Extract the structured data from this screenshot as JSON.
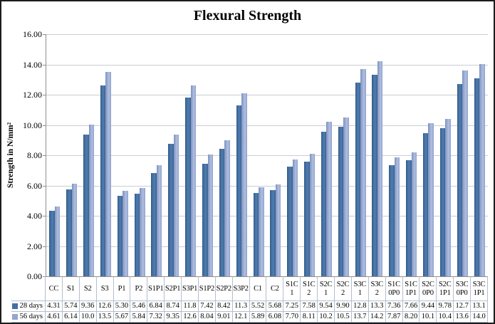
{
  "chart_data": {
    "type": "bar",
    "title": "Flexural Strength",
    "xlabel": "",
    "ylabel": "Strength in N/mm²",
    "ylim": [
      0,
      16
    ],
    "ytick_step": 2,
    "ytick_labels": [
      "0.00",
      "2.00",
      "4.00",
      "6.00",
      "8.00",
      "10.00",
      "12.00",
      "14.00",
      "16.00"
    ],
    "grid": true,
    "legend_position": "data-table-left",
    "categories": [
      "CC",
      "S1",
      "S2",
      "S3",
      "P1",
      "P2",
      "S1P1",
      "S2P1",
      "S3P1",
      "S1P2",
      "S2P2",
      "S3P2",
      "C1",
      "C2",
      "S1C1",
      "S1C2",
      "S2C1",
      "S2C2",
      "S3C1",
      "S3C2",
      "S1C0P0",
      "S1C1P1",
      "S2C0P0",
      "S2C1P1",
      "S3C0P0",
      "S3C1P1"
    ],
    "category_label_lines": [
      [
        "CC"
      ],
      [
        "S1"
      ],
      [
        "S2"
      ],
      [
        "S3"
      ],
      [
        "P1"
      ],
      [
        "P2"
      ],
      [
        "S1P1"
      ],
      [
        "S2P1"
      ],
      [
        "S3P1"
      ],
      [
        "S1P2"
      ],
      [
        "S2P2"
      ],
      [
        "S3P2"
      ],
      [
        "C1"
      ],
      [
        "C2"
      ],
      [
        "S1C",
        "1"
      ],
      [
        "S1C",
        "2"
      ],
      [
        "S2C",
        "1"
      ],
      [
        "S2C",
        "2"
      ],
      [
        "S3C",
        "1"
      ],
      [
        "S3C",
        "2"
      ],
      [
        "S1C",
        "0P0"
      ],
      [
        "S1C",
        "1P1"
      ],
      [
        "S2C",
        "0P0"
      ],
      [
        "S2C",
        "1P1"
      ],
      [
        "S3C",
        "0P0"
      ],
      [
        "S3C",
        "1P1"
      ]
    ],
    "series": [
      {
        "name": "28 days",
        "color": "#4470a2",
        "values": [
          4.31,
          5.74,
          9.36,
          12.6,
          5.3,
          5.46,
          6.84,
          8.74,
          11.8,
          7.42,
          8.42,
          11.3,
          5.52,
          5.68,
          7.25,
          7.58,
          9.54,
          9.9,
          12.8,
          13.3,
          7.36,
          7.66,
          9.44,
          9.78,
          12.7,
          13.1
        ],
        "table_values": [
          "4.31",
          "5.74",
          "9.36",
          "12.6",
          "5.30",
          "5.46",
          "6.84",
          "8.74",
          "11.8",
          "7.42",
          "8.42",
          "11.3",
          "5.52",
          "5.68",
          "7.25",
          "7.58",
          "9.54",
          "9.90",
          "12.8",
          "13.3",
          "7.36",
          "7.66",
          "9.44",
          "9.78",
          "12.7",
          "13.1"
        ]
      },
      {
        "name": "56 days",
        "color": "#96a6cc",
        "values": [
          4.61,
          6.14,
          10.0,
          13.5,
          5.67,
          5.84,
          7.32,
          9.35,
          12.6,
          8.04,
          9.01,
          12.1,
          5.89,
          6.08,
          7.7,
          8.11,
          10.2,
          10.5,
          13.7,
          14.2,
          7.87,
          8.2,
          10.1,
          10.4,
          13.6,
          14.0
        ],
        "table_values": [
          "4.61",
          "6.14",
          "10.0",
          "13.5",
          "5.67",
          "5.84",
          "7.32",
          "9.35",
          "12.6",
          "8.04",
          "9.01",
          "12.1",
          "5.89",
          "6.08",
          "7.70",
          "8.11",
          "10.2",
          "10.5",
          "13.7",
          "14.2",
          "7.87",
          "8.20",
          "10.1",
          "10.4",
          "13.6",
          "14.0"
        ]
      }
    ]
  },
  "colors": {
    "bar_28_days": "#4470a2",
    "bar_56_days": "#96a6cc",
    "gridline": "#cbcdd1",
    "axis": "#8f8f8f",
    "table_border": "#b3bfce",
    "chart_border": "#1c1c1c"
  }
}
